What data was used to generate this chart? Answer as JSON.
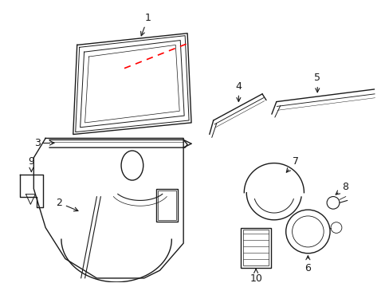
{
  "bg_color": "#ffffff",
  "line_color": "#1a1a1a",
  "red_dash_color": "#ff0000",
  "fig_width": 4.89,
  "fig_height": 3.6,
  "dpi": 100
}
